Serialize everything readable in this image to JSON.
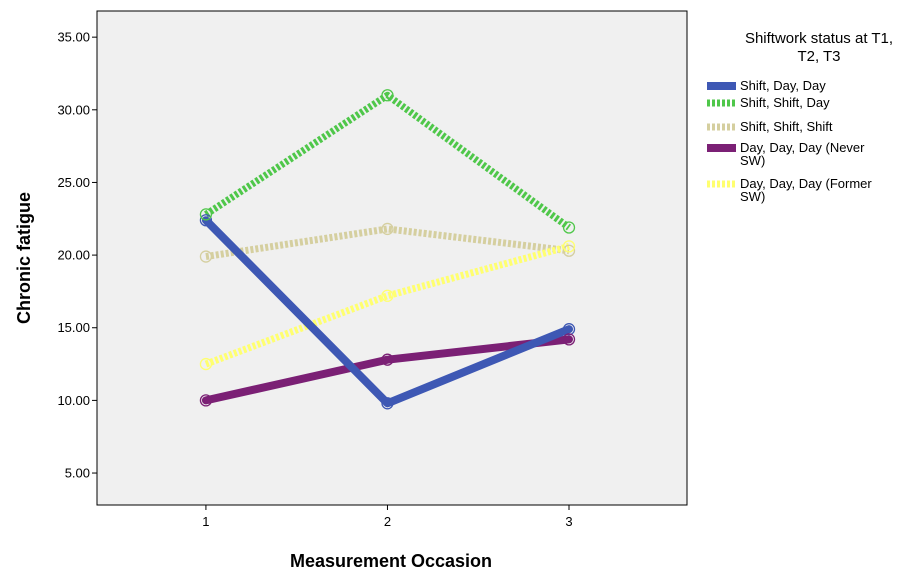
{
  "chart_data": {
    "type": "line",
    "xlabel": "Measurement Occasion",
    "ylabel": "Chronic fatigue",
    "x": [
      1,
      2,
      3
    ],
    "x_tick_labels": [
      "1",
      "2",
      "3"
    ],
    "xlim": [
      0.4,
      3.65
    ],
    "ylim": [
      2.8,
      36.8
    ],
    "y_ticks": [
      5,
      10,
      15,
      20,
      25,
      30,
      35
    ],
    "y_tick_labels": [
      "5.00",
      "10.00",
      "15.00",
      "20.00",
      "25.00",
      "30.00",
      "35.00"
    ],
    "grid": false,
    "legend": {
      "title_lines": [
        "Shiftwork status at T1,",
        "T2, T3"
      ],
      "placement": "right"
    },
    "series": [
      {
        "name": "Shift, Day, Day",
        "name_lines": [
          "Shift, Day, Day"
        ],
        "values": [
          22.4,
          9.8,
          14.9
        ],
        "color": "#3e58b4",
        "style": "solid"
      },
      {
        "name": "Shift, Shift, Day",
        "name_lines": [
          "Shift, Shift, Day"
        ],
        "values": [
          22.8,
          31.0,
          21.9
        ],
        "color": "#4fc74a",
        "style": "dotted"
      },
      {
        "name": "Shift, Shift, Shift",
        "name_lines": [
          "Shift, Shift, Shift"
        ],
        "values": [
          19.9,
          21.8,
          20.3
        ],
        "color": "#d5cf9f",
        "style": "dotted"
      },
      {
        "name": "Day, Day, Day (Never SW)",
        "name_lines": [
          "Day, Day, Day (Never",
          "SW)"
        ],
        "values": [
          10.0,
          12.8,
          14.2
        ],
        "color": "#7b2075",
        "style": "solid"
      },
      {
        "name": "Day, Day, Day (Former SW)",
        "name_lines": [
          "Day, Day, Day (Former",
          "SW)"
        ],
        "values": [
          12.5,
          17.2,
          20.6
        ],
        "color": "#ffff6f",
        "style": "dotted"
      }
    ]
  }
}
